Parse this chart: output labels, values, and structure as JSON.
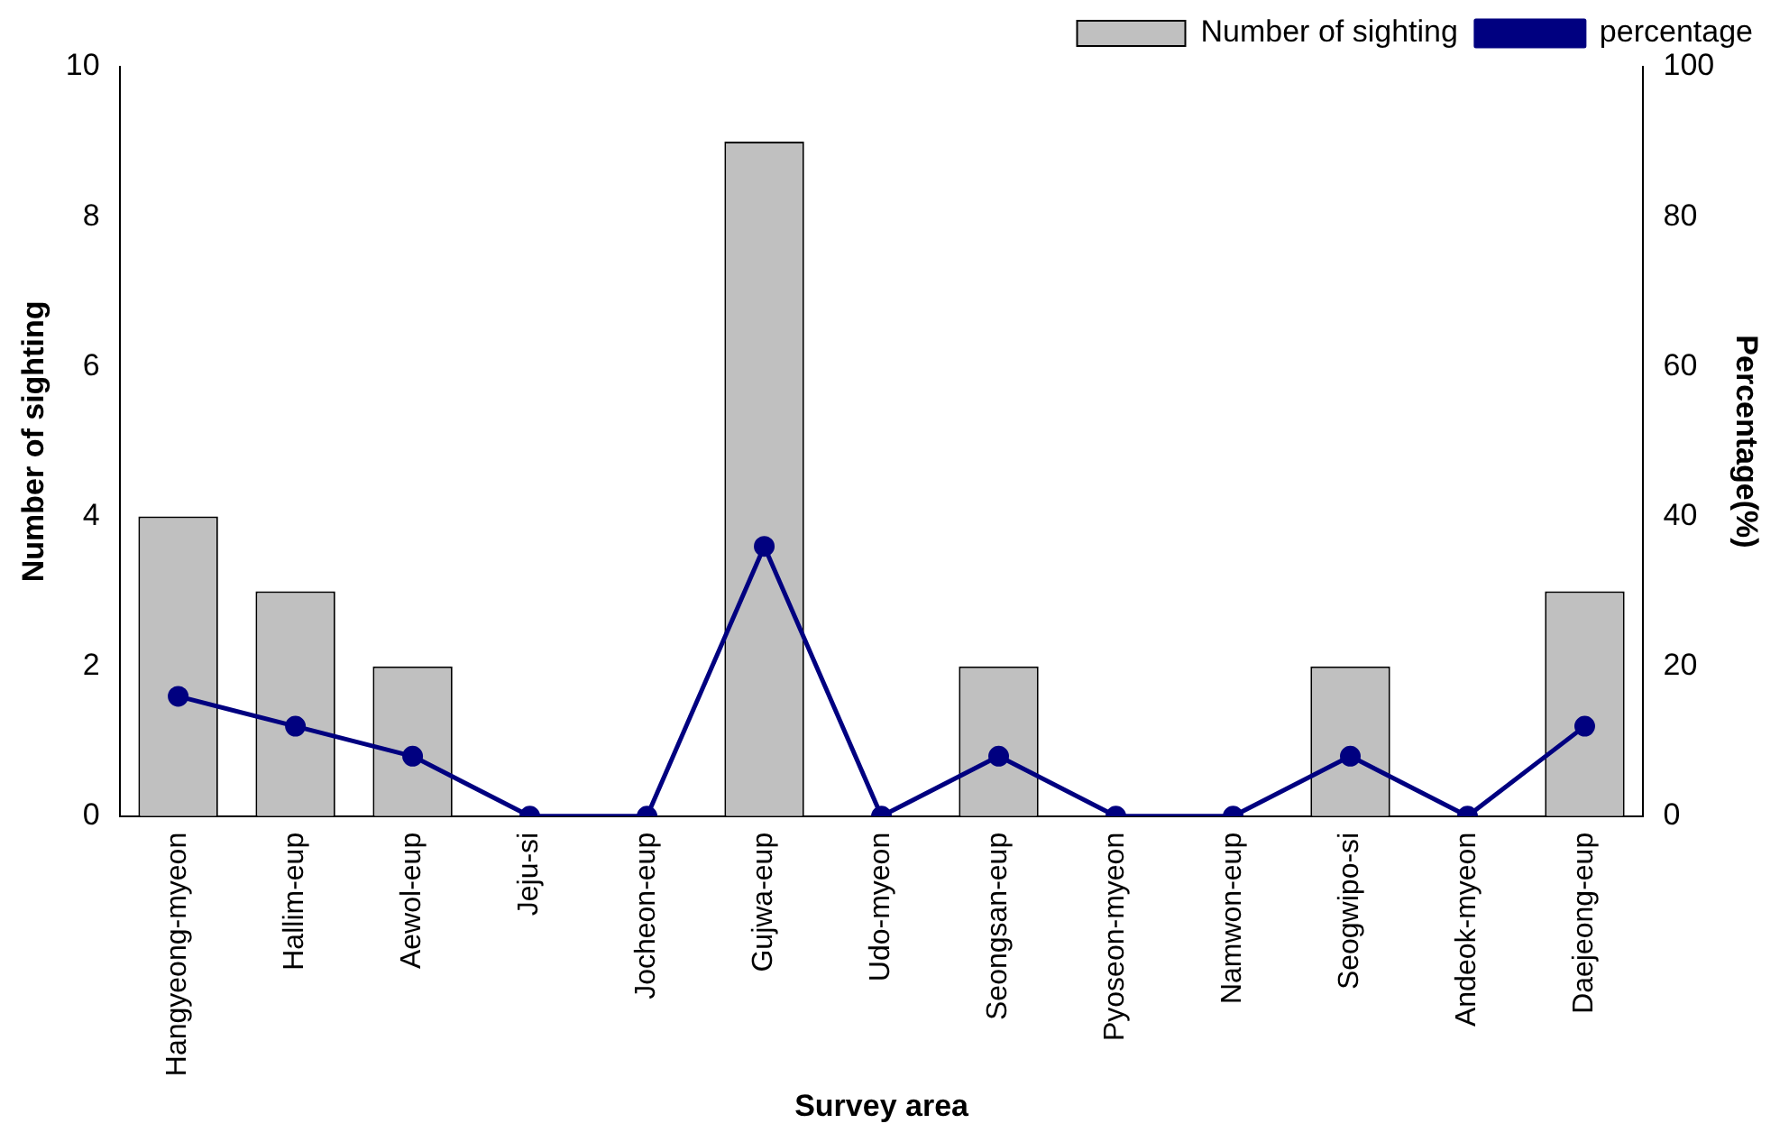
{
  "chart_data": {
    "type": "bar",
    "xlabel": "Survey area",
    "ylabel": "Number of sighting",
    "y2label": "Percentage(%)",
    "categories": [
      "Hangyeong-myeon",
      "Hallim-eup",
      "Aewol-eup",
      "Jeju-si",
      "Jocheon-eup",
      "Gujwa-eup",
      "Udo-myeon",
      "Seongsan-eup",
      "Pyoseon-myeon",
      "Namwon-eup",
      "Seogwipo-si",
      "Andeok-myeon",
      "Daejeong-eup"
    ],
    "series": [
      {
        "name": "Number of sighting",
        "color": "#c0c0c0",
        "values": [
          4,
          3,
          2,
          0,
          0,
          9,
          0,
          2,
          0,
          0,
          2,
          0,
          3
        ]
      },
      {
        "name": "percentage",
        "type": "line",
        "axis": "y2",
        "color": "#000080",
        "values": [
          16,
          12,
          8,
          0,
          0,
          36,
          0,
          8,
          0,
          0,
          8,
          0,
          12
        ]
      }
    ],
    "ylim": [
      0,
      10
    ],
    "yticks": [
      0,
      2,
      4,
      6,
      8,
      10
    ],
    "y2lim": [
      0,
      100
    ],
    "y2ticks": [
      0,
      20,
      40,
      60,
      80,
      100
    ],
    "marker": "circle",
    "line_style": "solid",
    "grid": false,
    "legend": "top right"
  }
}
